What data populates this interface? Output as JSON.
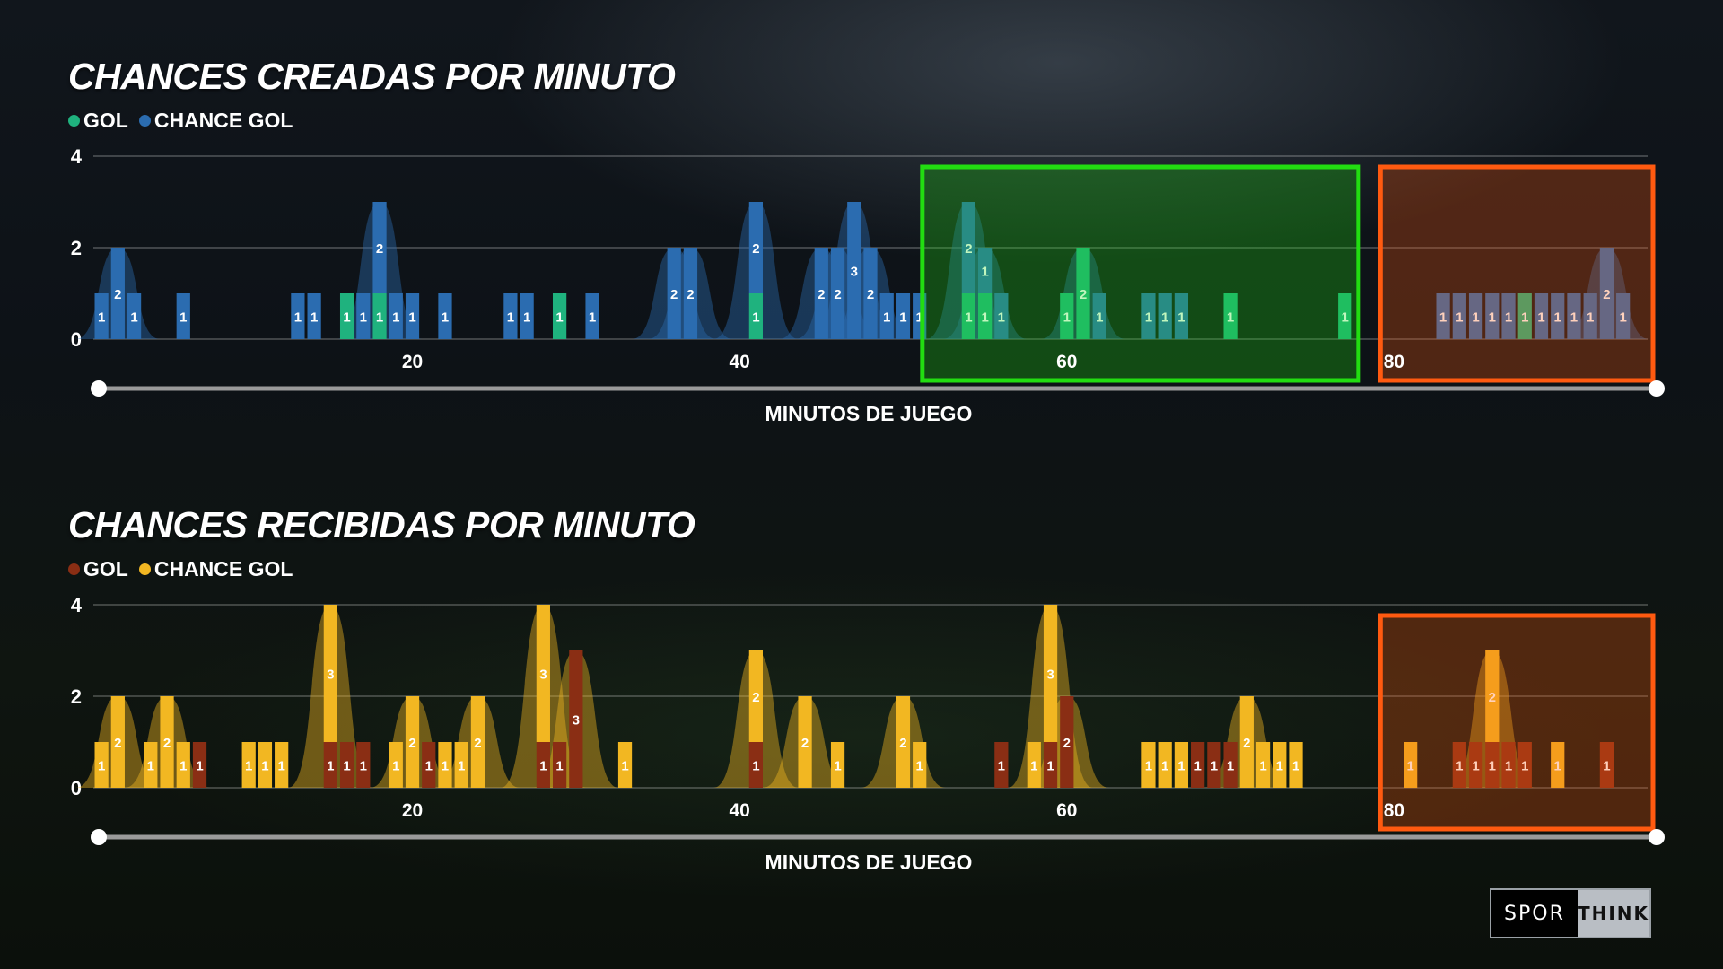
{
  "chart_data": [
    {
      "type": "bar",
      "title": "CHANCES CREADAS POR MINUTO",
      "xlabel": "MINUTOS DE JUEGO",
      "ylabel": "",
      "xlim": [
        1,
        95
      ],
      "ylim": [
        0,
        4
      ],
      "y_ticks": [
        0,
        2,
        4
      ],
      "x_ticks": [
        20,
        40,
        60,
        80
      ],
      "legend": "top-left",
      "series": [
        {
          "name": "GOL",
          "color": "#1fb27e",
          "points": [
            [
              16,
              1
            ],
            [
              18,
              1
            ],
            [
              29,
              1
            ],
            [
              41,
              1
            ],
            [
              54,
              1
            ],
            [
              55,
              1
            ],
            [
              60,
              1
            ],
            [
              61,
              2
            ],
            [
              70,
              1
            ],
            [
              77,
              1
            ],
            [
              88,
              1
            ]
          ]
        },
        {
          "name": "CHANCE GOL",
          "color": "#2b6cb0",
          "points": [
            [
              1,
              1
            ],
            [
              2,
              2
            ],
            [
              3,
              1
            ],
            [
              6,
              1
            ],
            [
              13,
              1
            ],
            [
              14,
              1
            ],
            [
              17,
              1
            ],
            [
              18,
              2
            ],
            [
              19,
              1
            ],
            [
              20,
              1
            ],
            [
              22,
              1
            ],
            [
              26,
              1
            ],
            [
              27,
              1
            ],
            [
              31,
              1
            ],
            [
              36,
              2
            ],
            [
              37,
              2
            ],
            [
              41,
              2
            ],
            [
              45,
              2
            ],
            [
              46,
              2
            ],
            [
              47,
              3
            ],
            [
              48,
              2
            ],
            [
              49,
              1
            ],
            [
              50,
              1
            ],
            [
              51,
              1
            ],
            [
              54,
              2
            ],
            [
              55,
              1
            ],
            [
              56,
              1
            ],
            [
              62,
              1
            ],
            [
              65,
              1
            ],
            [
              66,
              1
            ],
            [
              67,
              1
            ],
            [
              83,
              1
            ],
            [
              84,
              1
            ],
            [
              85,
              1
            ],
            [
              86,
              1
            ],
            [
              87,
              1
            ],
            [
              89,
              1
            ],
            [
              90,
              1
            ],
            [
              91,
              1
            ],
            [
              92,
              1
            ],
            [
              93,
              2
            ],
            [
              94,
              1
            ]
          ]
        }
      ],
      "annotations": [
        {
          "label": "",
          "x_range": [
            52,
            77
          ],
          "color": "#22dd11"
        },
        {
          "label": "",
          "x_range": [
            80,
            95
          ],
          "color": "#ff5a10"
        }
      ]
    },
    {
      "type": "bar",
      "title": "CHANCES RECIBIDAS POR MINUTO",
      "xlabel": "MINUTOS DE JUEGO",
      "ylabel": "",
      "xlim": [
        1,
        95
      ],
      "ylim": [
        0,
        4
      ],
      "y_ticks": [
        0,
        2,
        4
      ],
      "x_ticks": [
        20,
        40,
        60,
        80
      ],
      "legend": "top-left",
      "series": [
        {
          "name": "GOL",
          "color": "#8a2e14",
          "points": [
            [
              7,
              1
            ],
            [
              15,
              1
            ],
            [
              16,
              1
            ],
            [
              17,
              1
            ],
            [
              21,
              1
            ],
            [
              28,
              1
            ],
            [
              29,
              1
            ],
            [
              30,
              3
            ],
            [
              41,
              1
            ],
            [
              56,
              1
            ],
            [
              59,
              1
            ],
            [
              60,
              2
            ],
            [
              68,
              1
            ],
            [
              69,
              1
            ],
            [
              70,
              1
            ],
            [
              84,
              1
            ],
            [
              85,
              1
            ],
            [
              86,
              1
            ],
            [
              87,
              1
            ],
            [
              88,
              1
            ],
            [
              93,
              1
            ]
          ]
        },
        {
          "name": "CHANCE GOL",
          "color": "#f2b722",
          "points": [
            [
              1,
              1
            ],
            [
              2,
              2
            ],
            [
              4,
              1
            ],
            [
              5,
              2
            ],
            [
              6,
              1
            ],
            [
              10,
              1
            ],
            [
              11,
              1
            ],
            [
              12,
              1
            ],
            [
              15,
              3
            ],
            [
              19,
              1
            ],
            [
              20,
              2
            ],
            [
              22,
              1
            ],
            [
              23,
              1
            ],
            [
              24,
              2
            ],
            [
              28,
              3
            ],
            [
              33,
              1
            ],
            [
              41,
              2
            ],
            [
              44,
              2
            ],
            [
              46,
              1
            ],
            [
              50,
              2
            ],
            [
              51,
              1
            ],
            [
              58,
              1
            ],
            [
              59,
              3
            ],
            [
              65,
              1
            ],
            [
              66,
              1
            ],
            [
              67,
              1
            ],
            [
              71,
              2
            ],
            [
              72,
              1
            ],
            [
              73,
              1
            ],
            [
              74,
              1
            ],
            [
              81,
              1
            ],
            [
              86,
              2
            ],
            [
              90,
              1
            ]
          ]
        }
      ],
      "annotations": [
        {
          "label": "",
          "x_range": [
            80,
            95
          ],
          "color": "#ff5a10"
        }
      ]
    }
  ],
  "logo": {
    "left": "SPOR",
    "right": "THINK"
  }
}
